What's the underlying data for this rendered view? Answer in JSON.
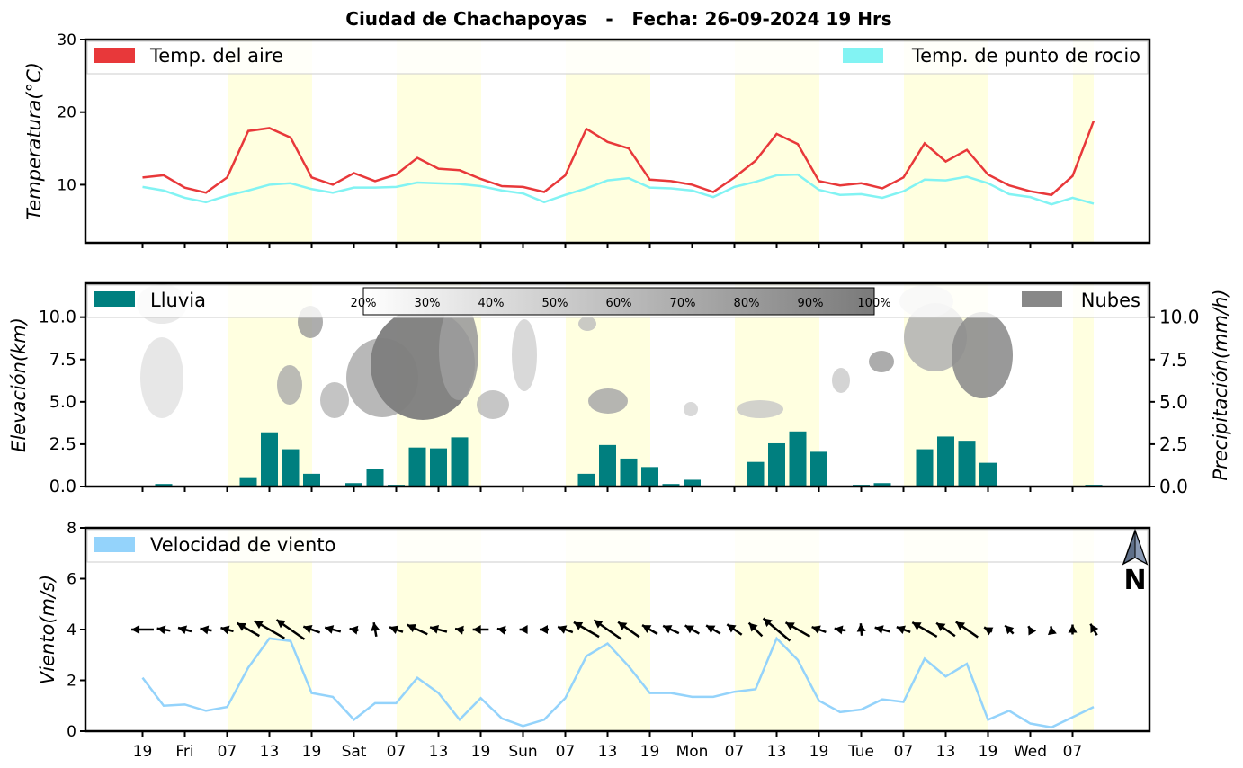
{
  "title": "Ciudad de Chachapoyas   -   Fecha: 26-09-2024 19 Hrs",
  "colors": {
    "temp_air": "#e8383a",
    "temp_dew": "#82f3f3",
    "rain": "#007f7f",
    "clouds": "#888888",
    "wind": "#94d3fb",
    "day_band": "#ffffe0"
  },
  "x_tick_labels": [
    "19",
    "Fri",
    "07",
    "13",
    "19",
    "Sat",
    "07",
    "13",
    "19",
    "Sun",
    "07",
    "13",
    "19",
    "Mon",
    "07",
    "13",
    "19",
    "Tue",
    "07",
    "13",
    "19",
    "Wed",
    "07"
  ],
  "chart_data": [
    {
      "type": "line",
      "ylabel": "Temperatura(°C)",
      "ylim": [
        2,
        30
      ],
      "yticks": [
        "10",
        "20",
        "30"
      ],
      "legend_placement": "top",
      "series": [
        {
          "name": "Temp. del aire",
          "values": [
            11.0,
            11.3,
            9.6,
            8.9,
            11.0,
            17.4,
            17.8,
            16.5,
            11.0,
            10.0,
            11.6,
            10.5,
            11.4,
            13.7,
            12.2,
            12.0,
            10.8,
            9.8,
            9.7,
            9.0,
            11.3,
            17.7,
            15.9,
            15.0,
            10.7,
            10.5,
            10.0,
            9.0,
            11.0,
            13.3,
            17.0,
            15.6,
            10.5,
            9.9,
            10.2,
            9.5,
            11.0,
            15.7,
            13.2,
            14.8,
            11.4,
            9.9,
            9.1,
            8.6,
            11.2,
            18.8
          ]
        },
        {
          "name": "Temp. de punto de rocio",
          "values": [
            9.7,
            9.2,
            8.2,
            7.6,
            8.5,
            9.2,
            10.0,
            10.2,
            9.4,
            8.9,
            9.6,
            9.6,
            9.7,
            10.3,
            10.2,
            10.1,
            9.8,
            9.2,
            8.8,
            7.6,
            8.6,
            9.5,
            10.6,
            10.9,
            9.6,
            9.5,
            9.2,
            8.3,
            9.7,
            10.4,
            11.3,
            11.4,
            9.3,
            8.6,
            8.7,
            8.2,
            9.1,
            10.7,
            10.6,
            11.1,
            10.2,
            8.7,
            8.3,
            7.3,
            8.2,
            7.4
          ]
        }
      ]
    },
    {
      "type": "bar",
      "ylabel": "Elevación(km)",
      "ylabel_right": "Precipitación(mm/h)",
      "ylim": [
        0,
        12
      ],
      "yticks": [
        "0.0",
        "2.5",
        "5.0",
        "7.5",
        "10.0"
      ],
      "legend_placement": "top",
      "colorbar_labels": [
        "20%",
        "30%",
        "40%",
        "50%",
        "60%",
        "70%",
        "80%",
        "90%",
        "100%"
      ],
      "series": [
        {
          "name": "Lluvia",
          "values": [
            0,
            0.15,
            0,
            0,
            0,
            0.55,
            3.2,
            2.2,
            0.75,
            0.05,
            0.2,
            1.05,
            0.1,
            2.3,
            2.25,
            2.9,
            0.05,
            0,
            0,
            0,
            0,
            0.75,
            2.45,
            1.65,
            1.15,
            0.15,
            0.4,
            0.05,
            0.05,
            1.45,
            2.55,
            3.25,
            2.05,
            0,
            0.1,
            0.2,
            0,
            2.2,
            2.95,
            2.7,
            1.4,
            0,
            0,
            0,
            0,
            0.1
          ]
        },
        {
          "name": "Nubes"
        }
      ]
    },
    {
      "type": "line",
      "ylabel": "Viento(m/s)",
      "ylim": [
        0,
        8
      ],
      "yticks": [
        "0",
        "2",
        "4",
        "6",
        "8"
      ],
      "legend_placement": "top-left",
      "north_label": "N",
      "series": [
        {
          "name": "Velocidad de viento",
          "values": [
            2.1,
            1.0,
            1.05,
            0.8,
            0.95,
            2.5,
            3.65,
            3.55,
            1.5,
            1.35,
            0.45,
            1.1,
            1.1,
            2.1,
            1.5,
            0.45,
            1.3,
            0.5,
            0.2,
            0.45,
            1.3,
            2.95,
            3.45,
            2.55,
            1.5,
            1.5,
            1.35,
            1.35,
            1.55,
            1.65,
            3.65,
            2.8,
            1.2,
            0.75,
            0.85,
            1.25,
            1.15,
            2.85,
            2.15,
            2.65,
            0.45,
            0.8,
            0.3,
            0.15,
            0.55,
            0.95
          ]
        }
      ],
      "wind_direction_deg": [
        90,
        80,
        75,
        80,
        75,
        60,
        60,
        55,
        70,
        75,
        80,
        10,
        70,
        65,
        75,
        80,
        90,
        80,
        90,
        90,
        70,
        60,
        55,
        55,
        60,
        65,
        60,
        60,
        55,
        45,
        50,
        60,
        70,
        80,
        5,
        75,
        70,
        60,
        55,
        55,
        60,
        45,
        30,
        10,
        0,
        30
      ],
      "wind_arrow_length": [
        2.1,
        1.0,
        1.05,
        0.8,
        0.95,
        2.5,
        3.65,
        3.55,
        1.5,
        1.35,
        0.45,
        1.1,
        1.1,
        2.1,
        1.5,
        0.45,
        1.3,
        0.5,
        0.2,
        0.45,
        1.3,
        2.95,
        3.45,
        2.55,
        1.5,
        1.5,
        1.35,
        1.35,
        1.55,
        1.65,
        3.65,
        2.8,
        1.2,
        0.75,
        0.85,
        1.25,
        1.15,
        2.85,
        2.15,
        2.65,
        0.45,
        0.8,
        0.3,
        0.15,
        0.55,
        0.95
      ]
    }
  ]
}
